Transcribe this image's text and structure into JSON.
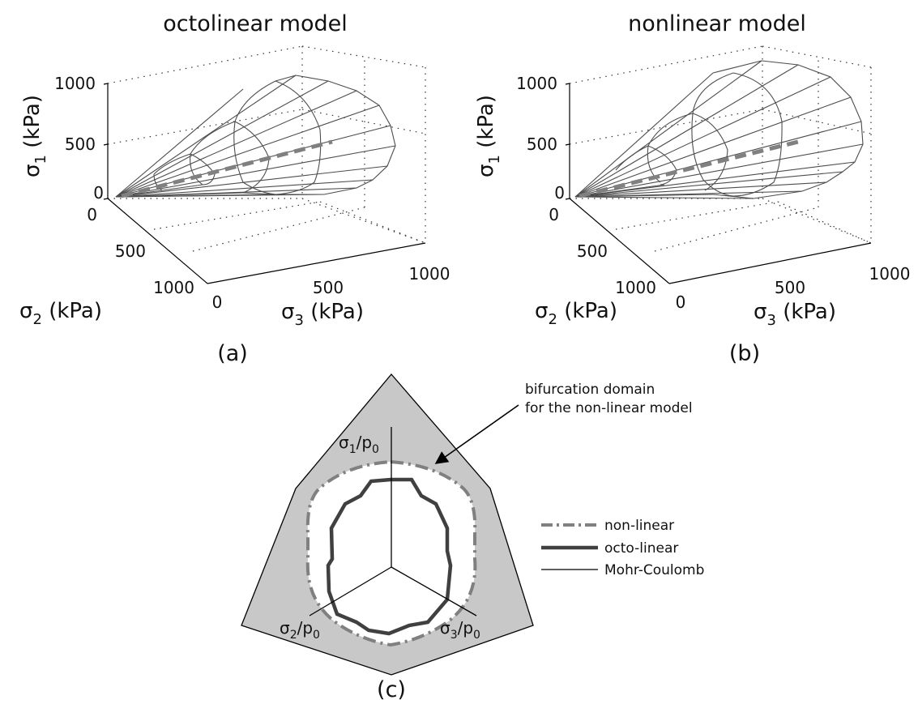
{
  "panel_a": {
    "title": "octolinear model",
    "caption": "(a)",
    "z_ticks": [
      "0",
      "500",
      "1000"
    ],
    "y_ticks": [
      "0",
      "500",
      "1000"
    ],
    "x_ticks": [
      "0",
      "500",
      "1000"
    ],
    "z_label": {
      "symbol": "σ",
      "sub": "1",
      "unit": " (kPa)"
    },
    "y_label": {
      "symbol": "σ",
      "sub": "2",
      "unit": " (kPa)"
    },
    "x_label": {
      "symbol": "σ",
      "sub": "3",
      "unit": " (kPa)"
    }
  },
  "panel_b": {
    "title": "nonlinear model",
    "caption": "(b)",
    "z_ticks": [
      "0",
      "500",
      "1000"
    ],
    "y_ticks": [
      "0",
      "500",
      "1000"
    ],
    "x_ticks": [
      "0",
      "500",
      "1000"
    ],
    "z_label": {
      "symbol": "σ",
      "sub": "1",
      "unit": " (kPa)"
    },
    "y_label": {
      "symbol": "σ",
      "sub": "2",
      "unit": " (kPa)"
    },
    "x_label": {
      "symbol": "σ",
      "sub": "3",
      "unit": " (kPa)"
    }
  },
  "panel_c": {
    "caption": "(c)",
    "annotation_line1": "bifurcation domain",
    "annotation_line2": "for the non-linear model",
    "axis1": {
      "symbol": "σ",
      "sub": "1",
      "sep": "/p",
      "sub2": "0"
    },
    "axis2": {
      "symbol": "σ",
      "sub": "2",
      "sep": "/p",
      "sub2": "0"
    },
    "axis3": {
      "symbol": "σ",
      "sub": "3",
      "sep": "/p",
      "sub2": "0"
    },
    "legend": [
      {
        "label": "non-linear",
        "style": "dash-dot",
        "color": "#808080"
      },
      {
        "label": "octo-linear",
        "style": "thick",
        "color": "#404040"
      },
      {
        "label": "Mohr-Coulomb",
        "style": "thin",
        "color": "#000000"
      }
    ],
    "domain_fill": "#c8c8c8"
  },
  "colors": {
    "mesh": "#4d4d4d",
    "axis_dash": "#808080",
    "grid": "#333333"
  }
}
